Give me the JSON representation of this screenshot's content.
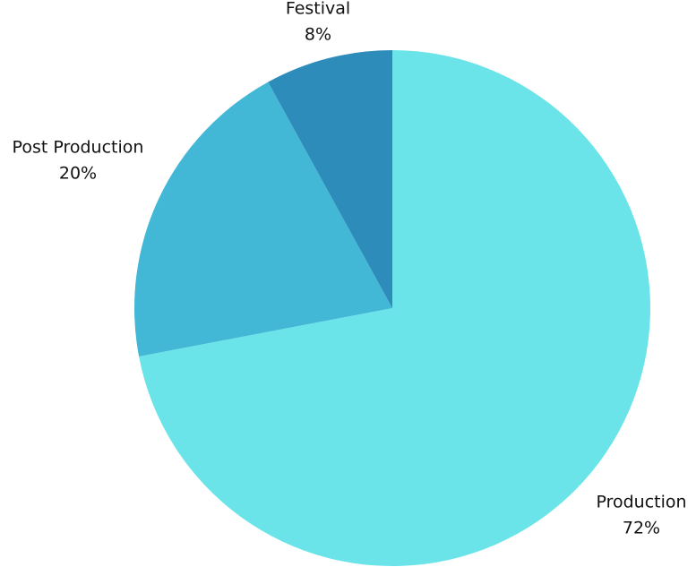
{
  "chart_data": {
    "type": "pie",
    "categories": [
      "Production",
      "Post Production",
      "Festival"
    ],
    "values": [
      72,
      20,
      8
    ],
    "value_labels": [
      "72%",
      "20%",
      "8%"
    ],
    "colors": [
      "#6ae4e9",
      "#43b8d6",
      "#2e8cbb"
    ]
  }
}
